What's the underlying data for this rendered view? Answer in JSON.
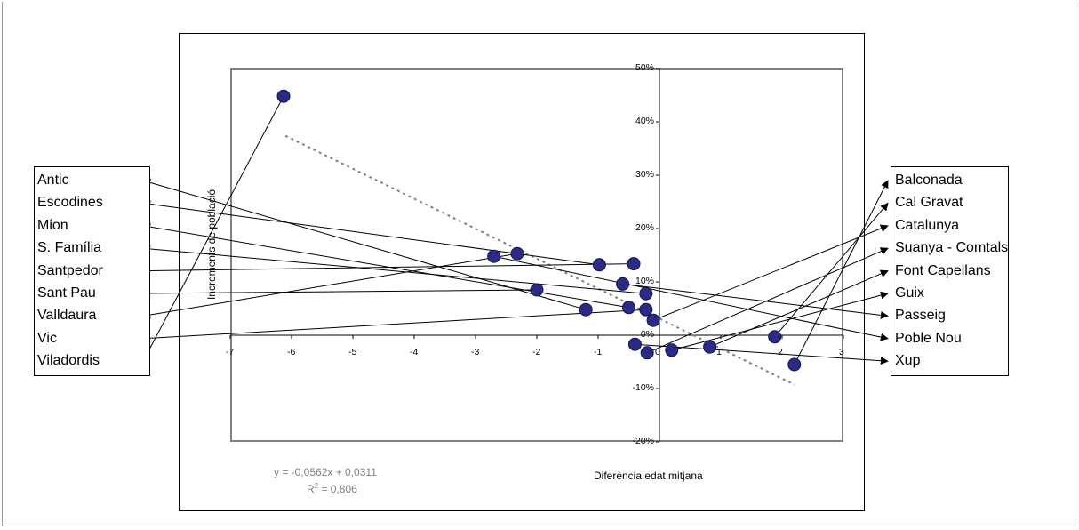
{
  "chart_data": {
    "type": "scatter",
    "title": "",
    "xlabel": "Diferència edat mitjana",
    "ylabel": "Increments de població",
    "xlim": [
      -7,
      3
    ],
    "ylim": [
      -0.2,
      0.5
    ],
    "x_ticks": [
      "-7",
      "-6",
      "-5",
      "-4",
      "-3",
      "-2",
      "-1",
      "0",
      "1",
      "2",
      "3"
    ],
    "y_ticks": [
      "-20%",
      "-10%",
      "0%",
      "10%",
      "20%",
      "30%",
      "40%",
      "50%"
    ],
    "grid": false,
    "point_color": "#2b2b85",
    "trendline": {
      "equation_text": "y = -0,0562x + 0,0311",
      "r2_prefix": "R",
      "r2_exp": "2",
      "r2_value": " = 0,806",
      "slope": -0.0562,
      "intercept": 0.0311,
      "x_range": [
        -6.1,
        2.2
      ],
      "color": "#808080"
    },
    "points": [
      {
        "x": -6.13,
        "y": 0.448
      },
      {
        "x": -2.7,
        "y": 0.148
      },
      {
        "x": -2.32,
        "y": 0.153
      },
      {
        "x": -2.0,
        "y": 0.085
      },
      {
        "x": -1.2,
        "y": 0.048
      },
      {
        "x": -0.98,
        "y": 0.132
      },
      {
        "x": -0.6,
        "y": 0.096
      },
      {
        "x": -0.5,
        "y": 0.052
      },
      {
        "x": -0.42,
        "y": 0.134
      },
      {
        "x": -0.4,
        "y": -0.017
      },
      {
        "x": -0.22,
        "y": 0.078
      },
      {
        "x": -0.22,
        "y": 0.048
      },
      {
        "x": -0.2,
        "y": -0.033
      },
      {
        "x": -0.1,
        "y": 0.028
      },
      {
        "x": 0.2,
        "y": -0.028
      },
      {
        "x": 0.82,
        "y": -0.022
      },
      {
        "x": 1.88,
        "y": -0.003
      },
      {
        "x": 2.2,
        "y": -0.055
      }
    ],
    "left_labels": [
      "Antic",
      "Escodines",
      "Mion",
      "S. Família",
      "Santpedor",
      "Sant Pau",
      "Valldaura",
      "Vic",
      "Viladordis"
    ],
    "right_labels": [
      "Balconada",
      "Cal Gravat",
      "Catalunya",
      "Suanya - Comtals",
      "Font Capellans",
      "Guix",
      "Passeig",
      "Poble Nou",
      "Xup"
    ],
    "left_links": [
      {
        "label": "Antic",
        "point": 4
      },
      {
        "label": "Escodines",
        "point": 5
      },
      {
        "label": "Mion",
        "point": 7
      },
      {
        "label": "S. Família",
        "point": 10
      },
      {
        "label": "Santpedor",
        "point": 8
      },
      {
        "label": "Sant Pau",
        "point": 3
      },
      {
        "label": "Valldaura",
        "point": 2
      },
      {
        "label": "Vic",
        "point": 11
      },
      {
        "label": "Viladordis",
        "point": 0
      }
    ],
    "right_links": [
      {
        "label": "Balconada",
        "point": 17
      },
      {
        "label": "Cal Gravat",
        "point": 16
      },
      {
        "label": "Catalunya",
        "point": 13
      },
      {
        "label": "Suanya - Comtals",
        "point": 12
      },
      {
        "label": "Font Capellans",
        "point": 15
      },
      {
        "label": "Guix",
        "point": 14
      },
      {
        "label": "Passeig",
        "point": 6
      },
      {
        "label": "Poble Nou",
        "point": 1
      },
      {
        "label": "Xup",
        "point": 9
      }
    ]
  }
}
